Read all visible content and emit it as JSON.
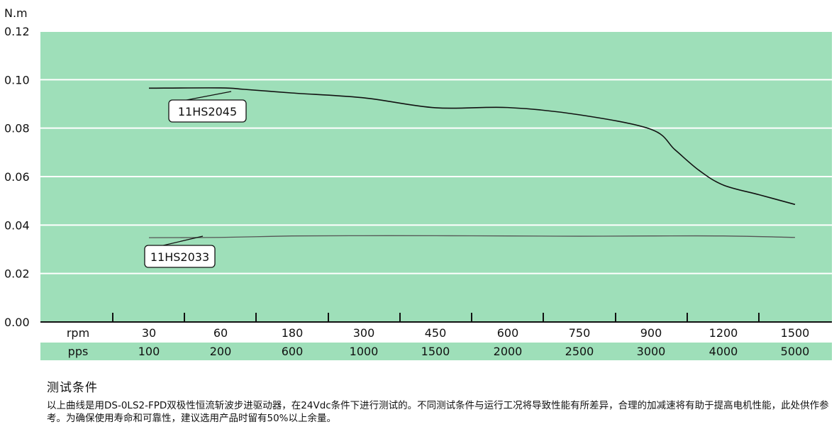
{
  "chart_data": {
    "type": "line",
    "ylabel": "N.m",
    "ylim": [
      0,
      0.12
    ],
    "yticks": [
      "0.00",
      "0.02",
      "0.04",
      "0.06",
      "0.08",
      "0.10",
      "0.12"
    ],
    "grid": true,
    "colors": {
      "plot_bg": "#9edfb9",
      "grid": "#ffffff",
      "pps_band": "#9edfb9",
      "series_1": "#111111",
      "series_2": "#555555"
    },
    "x_axes": [
      {
        "label": "rpm",
        "ticks": [
          "30",
          "60",
          "180",
          "300",
          "450",
          "600",
          "750",
          "900",
          "1200",
          "1500"
        ]
      },
      {
        "label": "pps",
        "ticks": [
          "100",
          "200",
          "600",
          "1000",
          "1500",
          "2000",
          "2500",
          "3000",
          "4000",
          "5000"
        ]
      }
    ],
    "series": [
      {
        "name": "11HS2045",
        "points": [
          {
            "x": 30,
            "y": 0.0965
          },
          {
            "x": 60,
            "y": 0.0966
          },
          {
            "x": 100,
            "y": 0.096
          },
          {
            "x": 180,
            "y": 0.0945
          },
          {
            "x": 300,
            "y": 0.0925
          },
          {
            "x": 450,
            "y": 0.0884
          },
          {
            "x": 600,
            "y": 0.0885
          },
          {
            "x": 750,
            "y": 0.0855
          },
          {
            "x": 900,
            "y": 0.0795
          },
          {
            "x": 1000,
            "y": 0.071
          },
          {
            "x": 1100,
            "y": 0.0625
          },
          {
            "x": 1200,
            "y": 0.0565
          },
          {
            "x": 1350,
            "y": 0.0525
          },
          {
            "x": 1500,
            "y": 0.0485
          }
        ]
      },
      {
        "name": "11HS2033",
        "points": [
          {
            "x": 30,
            "y": 0.0348
          },
          {
            "x": 60,
            "y": 0.0349
          },
          {
            "x": 180,
            "y": 0.0355
          },
          {
            "x": 300,
            "y": 0.0356
          },
          {
            "x": 450,
            "y": 0.0356
          },
          {
            "x": 600,
            "y": 0.0355
          },
          {
            "x": 750,
            "y": 0.0354
          },
          {
            "x": 900,
            "y": 0.0355
          },
          {
            "x": 1200,
            "y": 0.0355
          },
          {
            "x": 1500,
            "y": 0.0349
          }
        ]
      }
    ]
  },
  "notes": {
    "title": "测试条件",
    "body": "以上曲线是用DS-0LS2-FPD双极性恒流斩波步进驱动器，在24Vdc条件下进行测试的。不同测试条件与运行工况将导致性能有所差异，合理的加减速将有助于提高电机性能，此处供作参考。为确保使用寿命和可靠性，建议选用产品时留有50%以上余量。"
  }
}
